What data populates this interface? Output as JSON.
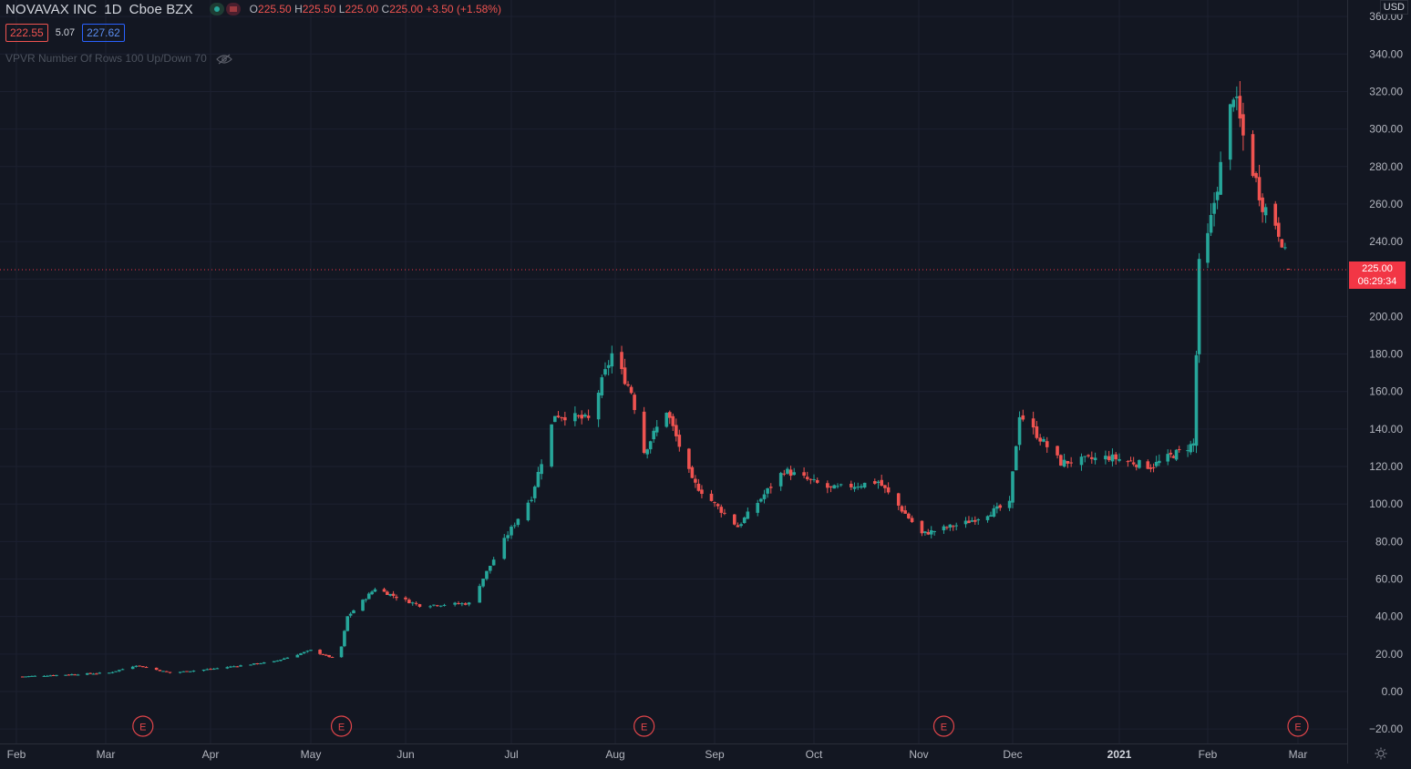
{
  "header": {
    "symbol": "NOVAVAX INC",
    "interval": "1D",
    "exchange": "Cboe BZX",
    "ohlc": {
      "o_label": "O",
      "o": "225.50",
      "h_label": "H",
      "h": "225.50",
      "l_label": "L",
      "l": "225.00",
      "c_label": "C",
      "c": "225.00",
      "change": "+3.50 (+1.58%)"
    },
    "bid": "222.55",
    "spread": "5.07",
    "ask": "227.62",
    "indicator": "VPVR Number Of Rows 100 Up/Down 70"
  },
  "price_axis": {
    "currency": "USD",
    "last_price": "225.00",
    "countdown": "06:29:34"
  },
  "colors": {
    "background": "#131722",
    "up": "#26a69a",
    "down": "#ef5350",
    "price_line": "#f23645",
    "earnings_marker": "#e0454a"
  },
  "chart_data": {
    "type": "candlestick",
    "ylim": [
      -20,
      360
    ],
    "y_ticks": [
      "360.00",
      "340.00",
      "320.00",
      "300.00",
      "280.00",
      "260.00",
      "240.00",
      "220.00",
      "200.00",
      "180.00",
      "160.00",
      "140.00",
      "120.00",
      "100.00",
      "80.00",
      "60.00",
      "40.00",
      "20.00",
      "0.00",
      "−20.00"
    ],
    "x_ticks": [
      "Feb",
      "Mar",
      "Apr",
      "May",
      "Jun",
      "Jul",
      "Aug",
      "Sep",
      "Oct",
      "Nov",
      "Dec",
      "2021",
      "Feb",
      "Mar"
    ],
    "earnings_markers": [
      "E",
      "E",
      "E",
      "E",
      "E"
    ],
    "last_price": 225.0,
    "approx_daily_closes": [
      {
        "date": "2020-02-03",
        "close": 8
      },
      {
        "date": "2020-03-02",
        "close": 10
      },
      {
        "date": "2020-03-10",
        "close": 14
      },
      {
        "date": "2020-03-20",
        "close": 10
      },
      {
        "date": "2020-04-01",
        "close": 12
      },
      {
        "date": "2020-04-20",
        "close": 16
      },
      {
        "date": "2020-05-01",
        "close": 22
      },
      {
        "date": "2020-05-08",
        "close": 18
      },
      {
        "date": "2020-05-11",
        "close": 24
      },
      {
        "date": "2020-05-13",
        "close": 40
      },
      {
        "date": "2020-05-22",
        "close": 55
      },
      {
        "date": "2020-06-05",
        "close": 46
      },
      {
        "date": "2020-06-19",
        "close": 47
      },
      {
        "date": "2020-06-30",
        "close": 84
      },
      {
        "date": "2020-07-07",
        "close": 104
      },
      {
        "date": "2020-07-14",
        "close": 148
      },
      {
        "date": "2020-07-24",
        "close": 145
      },
      {
        "date": "2020-07-31",
        "close": 180
      },
      {
        "date": "2020-08-06",
        "close": 160
      },
      {
        "date": "2020-08-10",
        "close": 128
      },
      {
        "date": "2020-08-17",
        "close": 150
      },
      {
        "date": "2020-08-25",
        "close": 112
      },
      {
        "date": "2020-09-08",
        "close": 88
      },
      {
        "date": "2020-09-22",
        "close": 118
      },
      {
        "date": "2020-10-06",
        "close": 108
      },
      {
        "date": "2020-10-20",
        "close": 112
      },
      {
        "date": "2020-11-02",
        "close": 84
      },
      {
        "date": "2020-11-16",
        "close": 90
      },
      {
        "date": "2020-11-30",
        "close": 100
      },
      {
        "date": "2020-12-03",
        "close": 148
      },
      {
        "date": "2020-12-15",
        "close": 122
      },
      {
        "date": "2020-12-29",
        "close": 125
      },
      {
        "date": "2021-01-12",
        "close": 120
      },
      {
        "date": "2021-01-27",
        "close": 132
      },
      {
        "date": "2021-01-29",
        "close": 227
      },
      {
        "date": "2021-02-01",
        "close": 242
      },
      {
        "date": "2021-02-05",
        "close": 280
      },
      {
        "date": "2021-02-09",
        "close": 320
      },
      {
        "date": "2021-02-12",
        "close": 296
      },
      {
        "date": "2021-02-18",
        "close": 260
      },
      {
        "date": "2021-02-22",
        "close": 250
      },
      {
        "date": "2021-02-24",
        "close": 241
      },
      {
        "date": "2021-02-26",
        "close": 225
      }
    ]
  }
}
